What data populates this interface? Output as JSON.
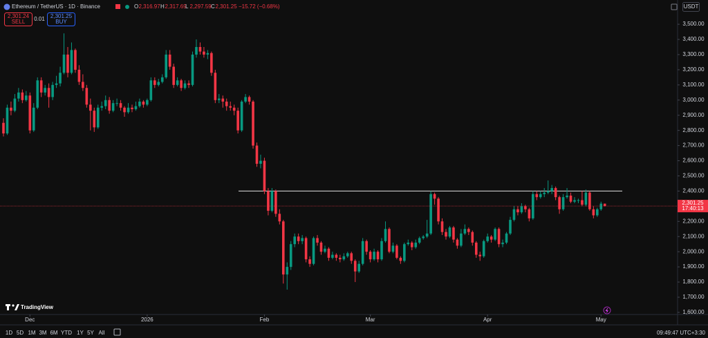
{
  "chart_data": {
    "type": "candlestick",
    "symbol": "Ethereum / TetherUS · 1D · Binance",
    "ohlc_legend": [
      {
        "key": "O",
        "value": "2,316.97"
      },
      {
        "key": "H",
        "value": "2,317.69"
      },
      {
        "key": "L",
        "value": "2,297.59"
      },
      {
        "key": "C",
        "value": "2,301.25"
      }
    ],
    "change": "−15.72 (−0.68%)",
    "sell": {
      "price": "2,301.24",
      "label": "SELL"
    },
    "spread": "0.01",
    "buy": {
      "price": "2,301.25",
      "label": "BUY"
    },
    "currency": "USDT",
    "series": [
      {
        "up_color": "#089981",
        "down_color": "#f23645",
        "values": [
          [
            2850,
            2880,
            2760,
            2780
          ],
          [
            2780,
            2970,
            2770,
            2950
          ],
          [
            2950,
            2990,
            2900,
            2930
          ],
          [
            2930,
            3040,
            2920,
            3010
          ],
          [
            3010,
            3080,
            2990,
            3050
          ],
          [
            3050,
            3070,
            2980,
            3000
          ],
          [
            3000,
            3060,
            2990,
            3030
          ],
          [
            3030,
            3050,
            2780,
            2800
          ],
          [
            2800,
            2980,
            2790,
            2950
          ],
          [
            2950,
            3150,
            2940,
            3130
          ],
          [
            3130,
            3150,
            3020,
            3050
          ],
          [
            3050,
            3100,
            3030,
            3080
          ],
          [
            3080,
            3110,
            2950,
            3020
          ],
          [
            3020,
            3120,
            3000,
            3100
          ],
          [
            3100,
            3160,
            3080,
            3110
          ],
          [
            3110,
            3220,
            3090,
            3180
          ],
          [
            3180,
            3440,
            3170,
            3300
          ],
          [
            3300,
            3350,
            3150,
            3180
          ],
          [
            3180,
            3380,
            3170,
            3330
          ],
          [
            3330,
            3340,
            3180,
            3200
          ],
          [
            3200,
            3230,
            3100,
            3120
          ],
          [
            3120,
            3170,
            3060,
            3080
          ],
          [
            3080,
            3100,
            2950,
            2970
          ],
          [
            2970,
            3010,
            2800,
            2930
          ],
          [
            2930,
            2950,
            2790,
            2820
          ],
          [
            2820,
            2970,
            2810,
            2950
          ],
          [
            2950,
            2990,
            2930,
            2960
          ],
          [
            2960,
            3030,
            2940,
            3000
          ],
          [
            3000,
            3020,
            2910,
            2930
          ],
          [
            2930,
            3000,
            2920,
            2980
          ],
          [
            2980,
            3010,
            2960,
            2980
          ],
          [
            2980,
            3000,
            2930,
            2950
          ],
          [
            2950,
            2960,
            2890,
            2920
          ],
          [
            2920,
            2980,
            2910,
            2950
          ],
          [
            2950,
            2970,
            2920,
            2940
          ],
          [
            2940,
            2990,
            2930,
            2960
          ],
          [
            2960,
            3010,
            2950,
            2990
          ],
          [
            2990,
            3000,
            2950,
            2970
          ],
          [
            2970,
            3010,
            2960,
            3000
          ],
          [
            3000,
            3150,
            2990,
            3130
          ],
          [
            3130,
            3150,
            3080,
            3100
          ],
          [
            3100,
            3140,
            3090,
            3120
          ],
          [
            3120,
            3170,
            3110,
            3150
          ],
          [
            3150,
            3330,
            3140,
            3300
          ],
          [
            3300,
            3330,
            3200,
            3220
          ],
          [
            3220,
            3240,
            3080,
            3100
          ],
          [
            3100,
            3150,
            3090,
            3130
          ],
          [
            3130,
            3140,
            3060,
            3080
          ],
          [
            3080,
            3130,
            3070,
            3110
          ],
          [
            3110,
            3130,
            3080,
            3100
          ],
          [
            3100,
            3320,
            3090,
            3300
          ],
          [
            3300,
            3400,
            3280,
            3350
          ],
          [
            3350,
            3380,
            3300,
            3320
          ],
          [
            3320,
            3350,
            3280,
            3300
          ],
          [
            3300,
            3330,
            3270,
            3310
          ],
          [
            3310,
            3320,
            3160,
            3180
          ],
          [
            3180,
            3200,
            2980,
            3000
          ],
          [
            3000,
            3040,
            2980,
            3010
          ],
          [
            3010,
            3030,
            2950,
            2990
          ],
          [
            2990,
            3010,
            2930,
            2960
          ],
          [
            2960,
            2990,
            2930,
            2950
          ],
          [
            2950,
            2970,
            2900,
            2930
          ],
          [
            2930,
            2950,
            2780,
            2800
          ],
          [
            2800,
            3000,
            2790,
            2990
          ],
          [
            2990,
            3040,
            2980,
            3020
          ],
          [
            3020,
            3030,
            2970,
            2990
          ],
          [
            2990,
            3000,
            2680,
            2700
          ],
          [
            2700,
            2720,
            2560,
            2580
          ],
          [
            2580,
            2640,
            2550,
            2600
          ],
          [
            2600,
            2620,
            2380,
            2400
          ],
          [
            2400,
            2420,
            2240,
            2270
          ],
          [
            2270,
            2420,
            2260,
            2400
          ],
          [
            2400,
            2410,
            2230,
            2250
          ],
          [
            2250,
            2280,
            2180,
            2200
          ],
          [
            2200,
            2210,
            1790,
            1850
          ],
          [
            1850,
            1930,
            1750,
            1900
          ],
          [
            1900,
            2070,
            1880,
            2050
          ],
          [
            2050,
            2120,
            2030,
            2100
          ],
          [
            2100,
            2120,
            2050,
            2070
          ],
          [
            2070,
            2110,
            2050,
            2090
          ],
          [
            2090,
            2100,
            1930,
            1950
          ],
          [
            1950,
            1970,
            1900,
            1920
          ],
          [
            1920,
            2100,
            1910,
            2090
          ],
          [
            2090,
            2110,
            2040,
            2060
          ],
          [
            2060,
            2070,
            1980,
            2000
          ],
          [
            2000,
            2040,
            1990,
            2020
          ],
          [
            2020,
            2030,
            1940,
            1960
          ],
          [
            1960,
            2000,
            1950,
            1980
          ],
          [
            1980,
            1990,
            1940,
            1960
          ],
          [
            1960,
            1980,
            1930,
            1950
          ],
          [
            1950,
            1990,
            1940,
            1970
          ],
          [
            1970,
            2000,
            1960,
            1990
          ],
          [
            1990,
            2000,
            1920,
            1940
          ],
          [
            1940,
            1950,
            1800,
            1870
          ],
          [
            1870,
            1940,
            1860,
            1920
          ],
          [
            1920,
            2090,
            1910,
            2070
          ],
          [
            2070,
            2080,
            1980,
            2000
          ],
          [
            2000,
            2010,
            1930,
            1950
          ],
          [
            1950,
            2020,
            1940,
            2000
          ],
          [
            2000,
            2010,
            1930,
            1950
          ],
          [
            1950,
            2090,
            1940,
            2070
          ],
          [
            2070,
            2200,
            2060,
            2150
          ],
          [
            2150,
            2160,
            1990,
            2000
          ],
          [
            2000,
            2060,
            1990,
            2040
          ],
          [
            2040,
            2050,
            1950,
            1960
          ],
          [
            1960,
            1970,
            1920,
            1940
          ],
          [
            1940,
            2060,
            1930,
            2050
          ],
          [
            2050,
            2080,
            2040,
            2060
          ],
          [
            2060,
            2070,
            2010,
            2030
          ],
          [
            2030,
            2080,
            2020,
            2060
          ],
          [
            2060,
            2100,
            2050,
            2090
          ],
          [
            2090,
            2110,
            2080,
            2100
          ],
          [
            2100,
            2210,
            2090,
            2120
          ],
          [
            2120,
            2400,
            2110,
            2380
          ],
          [
            2380,
            2390,
            2310,
            2350
          ],
          [
            2350,
            2360,
            2180,
            2200
          ],
          [
            2200,
            2220,
            2110,
            2130
          ],
          [
            2130,
            2150,
            2080,
            2100
          ],
          [
            2100,
            2170,
            2090,
            2160
          ],
          [
            2160,
            2170,
            2060,
            2080
          ],
          [
            2080,
            2090,
            2020,
            2040
          ],
          [
            2040,
            2150,
            2030,
            2120
          ],
          [
            2120,
            2180,
            2110,
            2150
          ],
          [
            2150,
            2160,
            2110,
            2130
          ],
          [
            2130,
            2140,
            2040,
            2060
          ],
          [
            2060,
            2070,
            1960,
            1980
          ],
          [
            1980,
            2000,
            1940,
            1970
          ],
          [
            1970,
            2080,
            1960,
            2070
          ],
          [
            2070,
            2120,
            2060,
            2100
          ],
          [
            2100,
            2110,
            2060,
            2080
          ],
          [
            2080,
            2160,
            2070,
            2150
          ],
          [
            2150,
            2160,
            2030,
            2050
          ],
          [
            2050,
            2080,
            2030,
            2060
          ],
          [
            2060,
            2130,
            2050,
            2120
          ],
          [
            2120,
            2230,
            2110,
            2210
          ],
          [
            2210,
            2300,
            2200,
            2280
          ],
          [
            2280,
            2300,
            2240,
            2260
          ],
          [
            2260,
            2320,
            2250,
            2300
          ],
          [
            2300,
            2310,
            2260,
            2280
          ],
          [
            2280,
            2290,
            2200,
            2220
          ],
          [
            2220,
            2400,
            2210,
            2380
          ],
          [
            2380,
            2400,
            2340,
            2360
          ],
          [
            2360,
            2400,
            2350,
            2380
          ],
          [
            2380,
            2420,
            2360,
            2390
          ],
          [
            2390,
            2470,
            2380,
            2400
          ],
          [
            2400,
            2440,
            2380,
            2420
          ],
          [
            2420,
            2430,
            2340,
            2360
          ],
          [
            2360,
            2370,
            2250,
            2280
          ],
          [
            2280,
            2380,
            2270,
            2360
          ],
          [
            2360,
            2420,
            2350,
            2370
          ],
          [
            2370,
            2390,
            2320,
            2330
          ],
          [
            2330,
            2360,
            2320,
            2340
          ],
          [
            2340,
            2350,
            2320,
            2340
          ],
          [
            2340,
            2400,
            2300,
            2310
          ],
          [
            2310,
            2410,
            2300,
            2390
          ],
          [
            2390,
            2400,
            2270,
            2280
          ],
          [
            2280,
            2300,
            2220,
            2240
          ],
          [
            2240,
            2290,
            2230,
            2280
          ],
          [
            2280,
            2330,
            2270,
            2316.97
          ],
          [
            2316.97,
            2317.69,
            2297.59,
            2301.25
          ]
        ]
      }
    ],
    "ylim": [
      1586,
      3660
    ],
    "yticks": [
      {
        "value": 1600,
        "label": "1,600.00"
      },
      {
        "value": 1700,
        "label": "1,700.00"
      },
      {
        "value": 1800,
        "label": "1,800.00"
      },
      {
        "value": 1900,
        "label": "1,900.00"
      },
      {
        "value": 2000,
        "label": "2,000.00"
      },
      {
        "value": 2100,
        "label": "2,100.00"
      },
      {
        "value": 2200,
        "label": "2,200.00"
      },
      {
        "value": 2300,
        "label": "2,300.00"
      },
      {
        "value": 2400,
        "label": "2,400.00"
      },
      {
        "value": 2500,
        "label": "2,500.00"
      },
      {
        "value": 2600,
        "label": "2,600.00"
      },
      {
        "value": 2700,
        "label": "2,700.00"
      },
      {
        "value": 2800,
        "label": "2,800.00"
      },
      {
        "value": 2900,
        "label": "2,900.00"
      },
      {
        "value": 3000,
        "label": "3,000.00"
      },
      {
        "value": 3100,
        "label": "3,100.00"
      },
      {
        "value": 3200,
        "label": "3,200.00"
      },
      {
        "value": 3300,
        "label": "3,300.00"
      },
      {
        "value": 3400,
        "label": "3,400.00"
      },
      {
        "value": 3500,
        "label": "3,500.00"
      }
    ],
    "xlim": [
      -0.914,
      178.24
    ],
    "xticks": [
      {
        "value": 7,
        "label": "Dec"
      },
      {
        "value": 38,
        "label": "2026"
      },
      {
        "value": 69,
        "label": "Feb"
      },
      {
        "value": 97,
        "label": "Mar"
      },
      {
        "value": 128,
        "label": "Apr"
      },
      {
        "value": 158,
        "label": "May"
      }
    ],
    "horizontal_lines": [
      2400
    ],
    "last_price_label": "2,301.25",
    "countdown": "17:40:13",
    "logo": "TradingView",
    "timeframes": [
      "1D",
      "5D",
      "1M",
      "3M",
      "6M",
      "YTD",
      "1Y",
      "5Y",
      "All"
    ],
    "clock": "09:49:47 UTC+3:30"
  }
}
